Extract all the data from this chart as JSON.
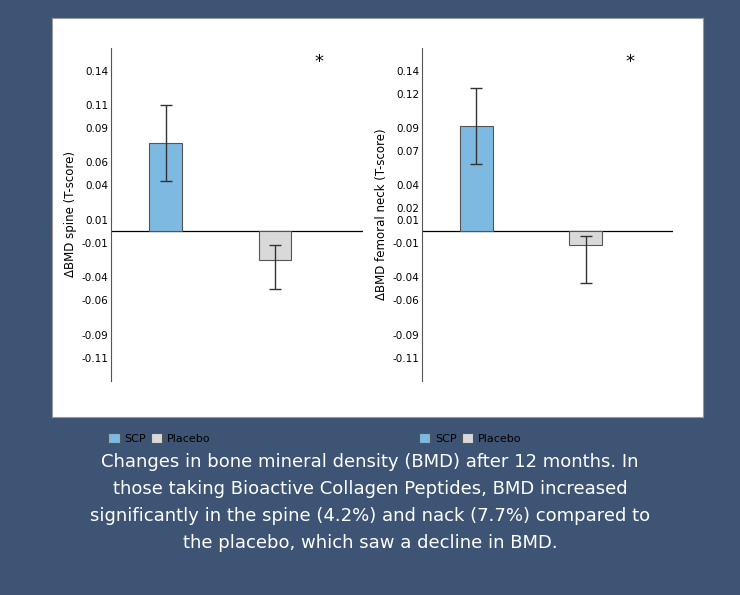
{
  "bg_color": "#3d5475",
  "chart_bg": "#ffffff",
  "bar_width": 0.3,
  "spine_scp_val": 0.077,
  "spine_scp_err_up": 0.033,
  "spine_scp_err_dn": 0.033,
  "spine_placebo_val": -0.025,
  "spine_placebo_err_up": 0.013,
  "spine_placebo_err_dn": 0.025,
  "femoral_scp_val": 0.092,
  "femoral_scp_err_up": 0.033,
  "femoral_scp_err_dn": 0.033,
  "femoral_placebo_val": -0.012,
  "femoral_placebo_err_up": 0.008,
  "femoral_placebo_err_dn": 0.033,
  "scp_color": "#7db9e0",
  "placebo_color": "#d9d9d9",
  "spine_yticks": [
    -0.11,
    -0.09,
    -0.06,
    -0.04,
    -0.01,
    0.01,
    0.04,
    0.06,
    0.09,
    0.11,
    0.14
  ],
  "femoral_yticks": [
    -0.11,
    -0.09,
    -0.06,
    -0.04,
    -0.01,
    0.01,
    0.02,
    0.04,
    0.07,
    0.09,
    0.12,
    0.14
  ],
  "spine_ylabel": "ΔBMD spine (T-score)",
  "femoral_ylabel": "ΔBMD femoral neck (T-score)",
  "legend_scp": "SCP",
  "legend_placebo": "Placebo",
  "caption": "Changes in bone mineral density (BMD) after 12 months. In\nthose taking Bioactive Collagen Peptides, BMD increased\nsignificantly in the spine (4.2%) and nack (7.7%) compared to\nthe placebo, which saw a decline in BMD.",
  "caption_color": "#ffffff",
  "caption_fontsize": 13.0,
  "star_annotation": "*",
  "ylim": [
    -0.13,
    0.16
  ]
}
